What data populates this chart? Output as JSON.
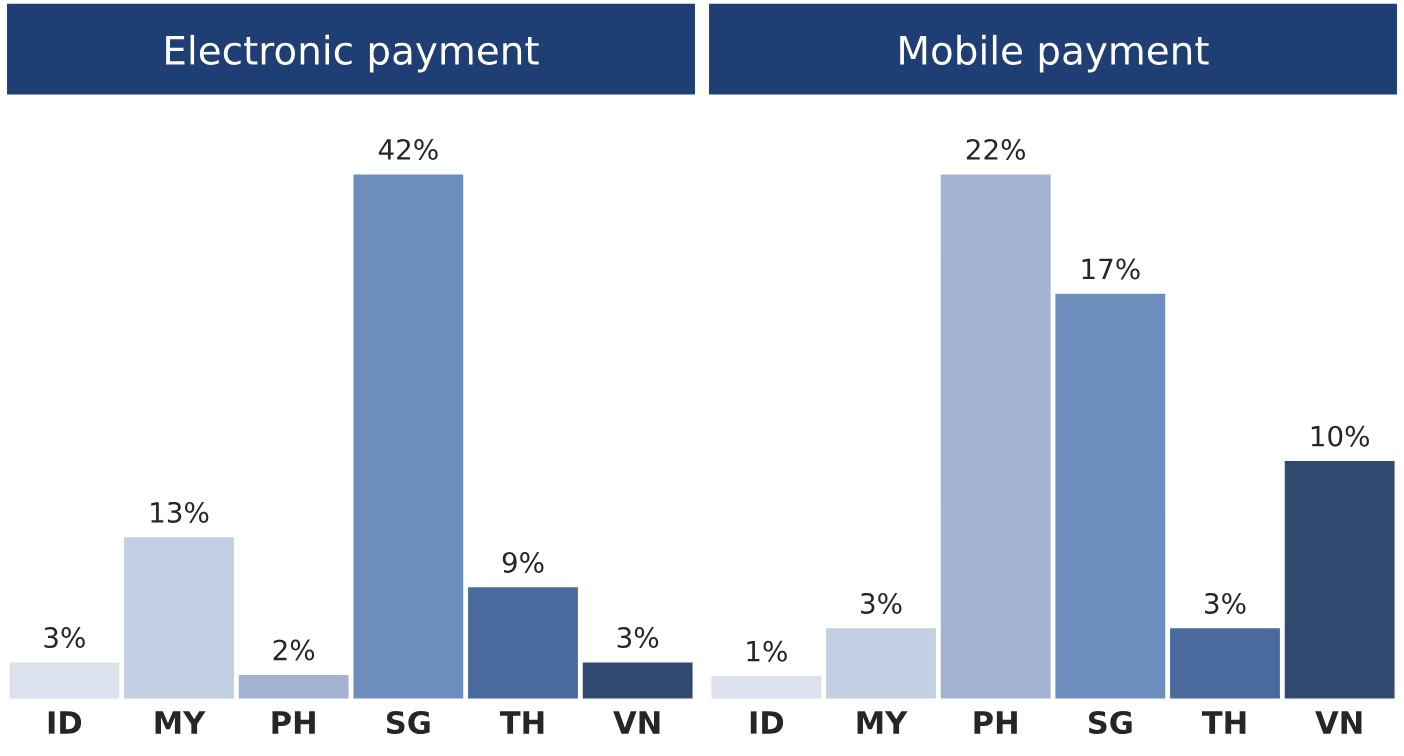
{
  "chart_data": [
    {
      "type": "bar",
      "title": "Electronic payment",
      "categories": [
        "ID",
        "MY",
        "PH",
        "SG",
        "TH",
        "VN"
      ],
      "values": [
        3,
        13,
        2,
        42,
        9,
        3
      ],
      "value_labels": [
        "3%",
        "13%",
        "2%",
        "42%",
        "9%",
        "3%"
      ],
      "colors": [
        "#dbe2ee",
        "#c3cfe2",
        "#a2b3d1",
        "#6e8ebe",
        "#4a6a9e",
        "#334a70"
      ],
      "grid": false,
      "legend": false
    },
    {
      "type": "bar",
      "title": "Mobile payment",
      "categories": [
        "ID",
        "MY",
        "PH",
        "SG",
        "TH",
        "VN"
      ],
      "values": [
        1,
        3,
        22,
        17,
        3,
        10
      ],
      "value_labels": [
        "1%",
        "3%",
        "22%",
        "17%",
        "3%",
        "10%"
      ],
      "colors": [
        "#dbe2ee",
        "#c3cfe2",
        "#a2b3d1",
        "#6e8ebe",
        "#4a6a9e",
        "#334a70"
      ],
      "grid": false,
      "legend": false
    }
  ]
}
